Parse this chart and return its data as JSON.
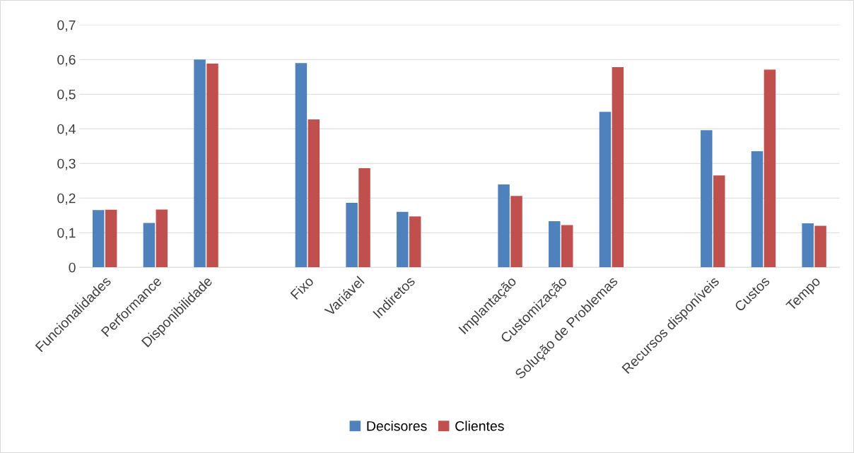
{
  "chart_data": {
    "type": "bar",
    "categories": [
      "Funcionalidades",
      "Performance",
      "Disponibilidade",
      null,
      "Fixo",
      "Variável",
      "Indiretos",
      null,
      "Implantação",
      "Customização",
      "Solução de Problemas",
      null,
      "Recursos disponíveis",
      "Custos",
      "Tempo"
    ],
    "series": [
      {
        "name": "Decisores",
        "color": "#4f81bd",
        "values": [
          0.165,
          0.128,
          0.6,
          null,
          0.59,
          0.186,
          0.16,
          null,
          0.239,
          0.133,
          0.449,
          null,
          0.396,
          0.335,
          0.127
        ]
      },
      {
        "name": "Clientes",
        "color": "#c0504d",
        "values": [
          0.166,
          0.167,
          0.588,
          null,
          0.427,
          0.286,
          0.147,
          null,
          0.206,
          0.122,
          0.578,
          null,
          0.265,
          0.571,
          0.12
        ]
      }
    ],
    "ylim": [
      0,
      0.7
    ],
    "yticks": [
      0,
      {
        "value": 0.1,
        "label": "0,1"
      },
      {
        "value": 0.2,
        "label": "0,2"
      },
      {
        "value": 0.3,
        "label": "0,3"
      },
      {
        "value": 0.4,
        "label": "0,4"
      },
      {
        "value": 0.5,
        "label": "0,5"
      },
      {
        "value": 0.6,
        "label": "0,6"
      },
      {
        "value": 0.7,
        "label": "0,7"
      }
    ],
    "grid": "y",
    "legend": "bottom"
  }
}
